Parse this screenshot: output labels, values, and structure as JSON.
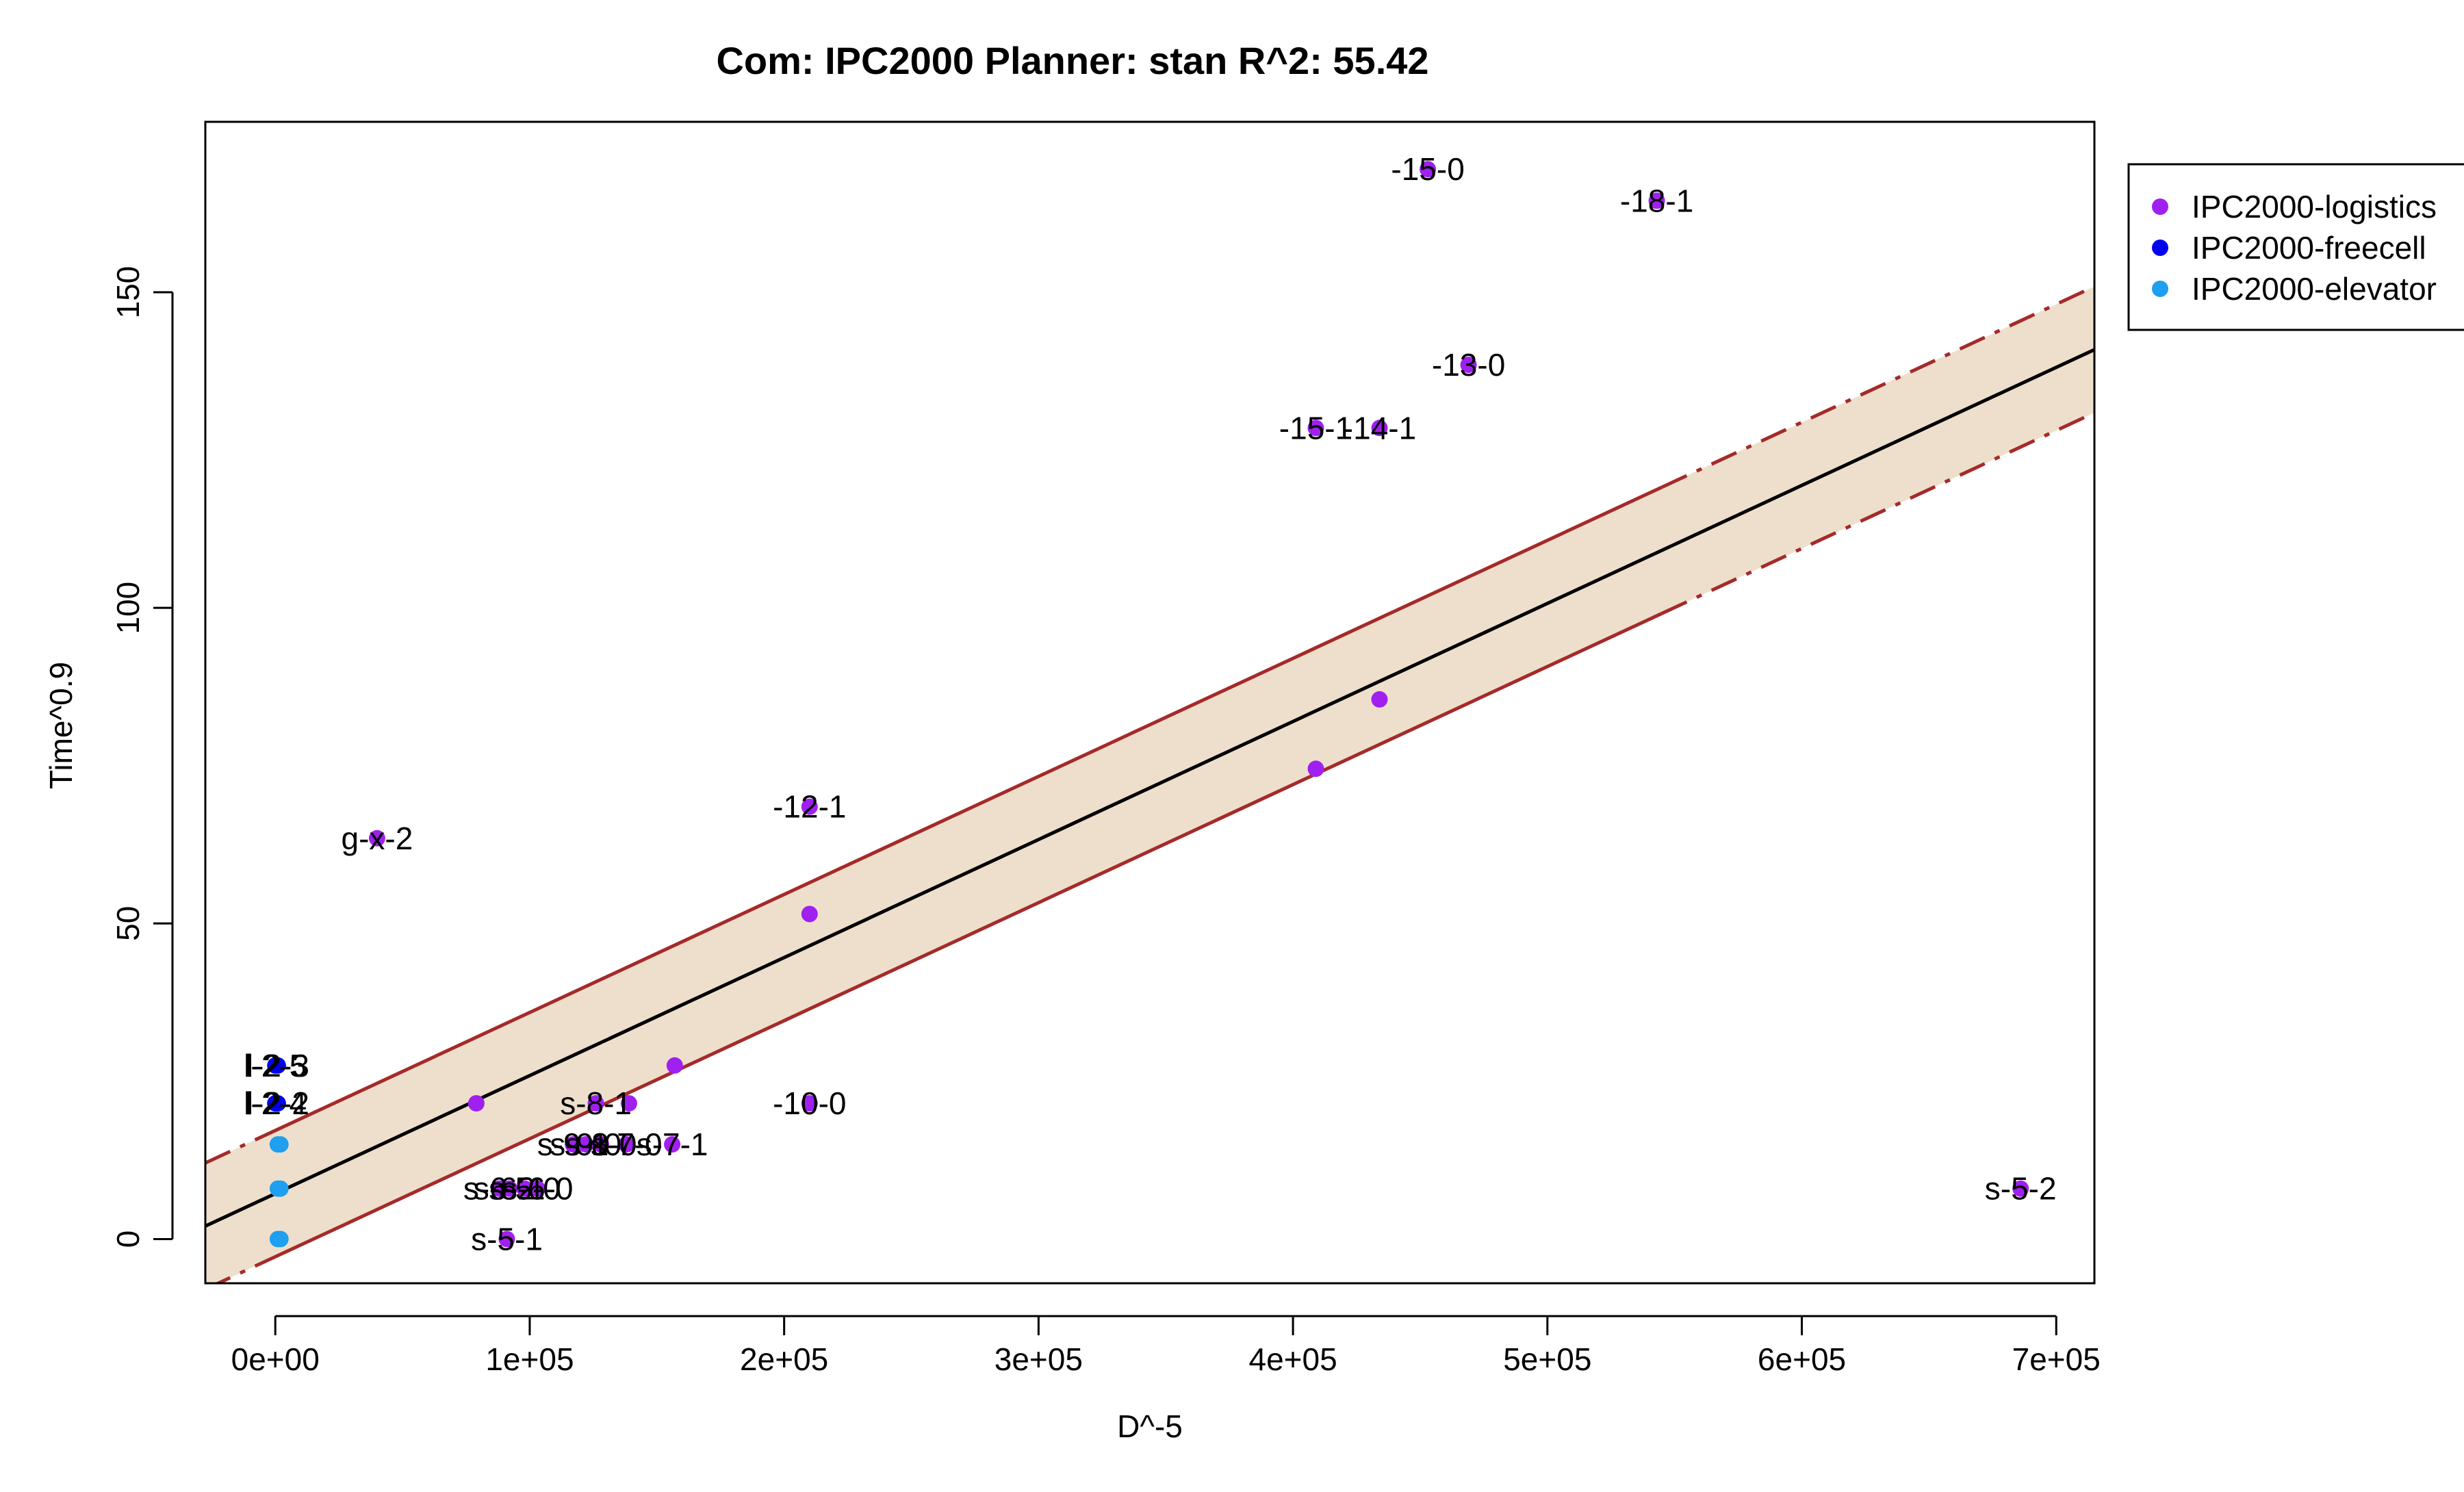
{
  "chart_data": {
    "type": "scatter",
    "title": "Com: IPC2000 Planner: stan R^2: 55.42",
    "xlabel": "D^-5",
    "ylabel": "Time^0.9",
    "xlim": [
      -27500,
      715000
    ],
    "ylim": [
      -7,
      177
    ],
    "x_ticks": [
      0,
      100000,
      200000,
      300000,
      400000,
      500000,
      600000,
      700000
    ],
    "x_tick_labels": [
      "0e+00",
      "1e+05",
      "2e+05",
      "3e+05",
      "4e+05",
      "5e+05",
      "6e+05",
      "7e+05"
    ],
    "y_ticks": [
      0,
      50,
      100,
      150
    ],
    "y_tick_labels": [
      "0",
      "50",
      "100",
      "150"
    ],
    "grid": false,
    "legend_position": "outside-top-right",
    "series": [
      {
        "name": "IPC2000-logistics",
        "color": "#A020F0",
        "points": [
          {
            "x": 453000,
            "y": 169.5,
            "label": "-15-0"
          },
          {
            "x": 543000,
            "y": 164.5,
            "label": "-18-1"
          },
          {
            "x": 469000,
            "y": 138.5,
            "label": "-13-0"
          },
          {
            "x": 409000,
            "y": 128.5,
            "label": "-15-1"
          },
          {
            "x": 434000,
            "y": 128.5,
            "label": "-14-1"
          },
          {
            "x": 434000,
            "y": 85.5,
            "label": ""
          },
          {
            "x": 409000,
            "y": 74.5,
            "label": ""
          },
          {
            "x": 210000,
            "y": 68.5,
            "label": "-12-1"
          },
          {
            "x": 40000,
            "y": 63.5,
            "label": "g-x-2"
          },
          {
            "x": 210000,
            "y": 51.5,
            "label": ""
          },
          {
            "x": 157000,
            "y": 27.5,
            "label": ""
          },
          {
            "x": 79000,
            "y": 21.5,
            "label": ""
          },
          {
            "x": 126000,
            "y": 21.5,
            "label": "s-8-1"
          },
          {
            "x": 139000,
            "y": 21.5,
            "label": ""
          },
          {
            "x": 210000,
            "y": 21.5,
            "label": "-10-0"
          },
          {
            "x": 117000,
            "y": 15,
            "label": "s-9-1"
          },
          {
            "x": 122000,
            "y": 15,
            "label": "s-9-0"
          },
          {
            "x": 128000,
            "y": 15,
            "label": "s-8-0"
          },
          {
            "x": 138000,
            "y": 15,
            "label": "s-7-0"
          },
          {
            "x": 156000,
            "y": 15,
            "label": "s-7-1"
          },
          {
            "x": 88000,
            "y": 8,
            "label": "s-6-2"
          },
          {
            "x": 92000,
            "y": 8,
            "label": "s-6-1"
          },
          {
            "x": 98000,
            "y": 8,
            "label": "s-5-0"
          },
          {
            "x": 103000,
            "y": 8,
            "label": "s-6-0"
          },
          {
            "x": 91000,
            "y": 0,
            "label": "s-5-1"
          },
          {
            "x": 686000,
            "y": 8,
            "label": "s-5-2"
          }
        ]
      },
      {
        "name": "IPC2000-freecell",
        "color": "#0000EE",
        "points": [
          {
            "x": 0,
            "y": 27.5,
            "label": "l-2-5"
          },
          {
            "x": 1000,
            "y": 27.5,
            "label": "l-2-3"
          },
          {
            "x": 0,
            "y": 21.5,
            "label": "l-2-4"
          },
          {
            "x": 1000,
            "y": 21.5,
            "label": "l-2-2"
          }
        ]
      },
      {
        "name": "IPC2000-elevator",
        "color": "#1E9FEF",
        "points": [
          {
            "x": 1000,
            "y": 15,
            "label": ""
          },
          {
            "x": 2000,
            "y": 15,
            "label": ""
          },
          {
            "x": 1000,
            "y": 8,
            "label": ""
          },
          {
            "x": 2000,
            "y": 8,
            "label": ""
          },
          {
            "x": 1000,
            "y": 0,
            "label": ""
          },
          {
            "x": 2000,
            "y": 0,
            "label": ""
          }
        ]
      }
    ],
    "regression": {
      "intercept": 7.2,
      "slope": 0.000187,
      "band_halfwidth": 10,
      "line_color": "#000000",
      "band_line_color": "#A52A2A",
      "band_fill_color": "#EEDFCC"
    }
  }
}
